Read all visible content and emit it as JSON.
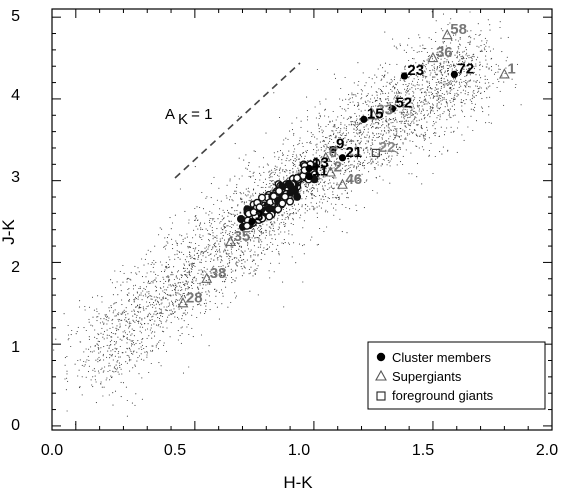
{
  "chart_data": {
    "type": "scatter",
    "xlabel": "H-K",
    "ylabel": "J-K",
    "xlim": [
      -0.1,
      2.0
    ],
    "ylim": [
      -0.05,
      5.1
    ],
    "xticks": [
      "0.0",
      "0.5",
      "1.0",
      "1.5",
      "2.0"
    ],
    "yticks": [
      "0",
      "1",
      "2",
      "3",
      "4",
      "5"
    ],
    "grid": false,
    "legend_position": "bottom-right",
    "legend": [
      {
        "marker": "filled-circle",
        "label": "Cluster members"
      },
      {
        "marker": "open-triangle",
        "label": "Supergiants"
      },
      {
        "marker": "open-square",
        "label": "foreground giants"
      }
    ],
    "reddening_vector": {
      "label_main": "A",
      "label_sub": "K",
      "label_rest": " = 1",
      "start": [
        0.5,
        3.0
      ],
      "end": [
        1.0,
        4.3
      ]
    },
    "labeled_points": [
      {
        "id": "58",
        "type": "supergiant",
        "x": 1.56,
        "y": 4.78
      },
      {
        "id": "36",
        "type": "supergiant",
        "x": 1.5,
        "y": 4.5
      },
      {
        "id": "1",
        "type": "supergiant",
        "x": 1.8,
        "y": 4.3
      },
      {
        "id": "72",
        "type": "member",
        "x": 1.59,
        "y": 4.3
      },
      {
        "id": "23",
        "type": "member",
        "x": 1.38,
        "y": 4.28
      },
      {
        "id": "52",
        "type": "member",
        "x": 1.33,
        "y": 3.88
      },
      {
        "id": "33",
        "type": "supergiant",
        "x": 1.25,
        "y": 3.8
      },
      {
        "id": "15",
        "type": "member",
        "x": 1.21,
        "y": 3.75
      },
      {
        "id": "22",
        "type": "foreground",
        "x": 1.26,
        "y": 3.34
      },
      {
        "id": "9",
        "type": "member",
        "x": 1.08,
        "y": 3.38
      },
      {
        "id": "21",
        "type": "member",
        "x": 1.12,
        "y": 3.28
      },
      {
        "id": "6",
        "type": "supergiant",
        "x": 1.05,
        "y": 3.28
      },
      {
        "id": "13",
        "type": "member",
        "x": 0.98,
        "y": 3.15
      },
      {
        "id": "11",
        "type": "member",
        "x": 0.98,
        "y": 3.05
      },
      {
        "id": "2",
        "type": "supergiant",
        "x": 1.07,
        "y": 3.1
      },
      {
        "id": "46",
        "type": "supergiant",
        "x": 1.12,
        "y": 2.95
      },
      {
        "id": "3",
        "type": "member",
        "x": 0.74,
        "y": 2.5
      },
      {
        "id": "35",
        "type": "supergiant",
        "x": 0.65,
        "y": 2.25
      },
      {
        "id": "38",
        "type": "supergiant",
        "x": 0.55,
        "y": 1.8
      },
      {
        "id": "28",
        "type": "supergiant",
        "x": 0.45,
        "y": 1.5
      }
    ]
  }
}
